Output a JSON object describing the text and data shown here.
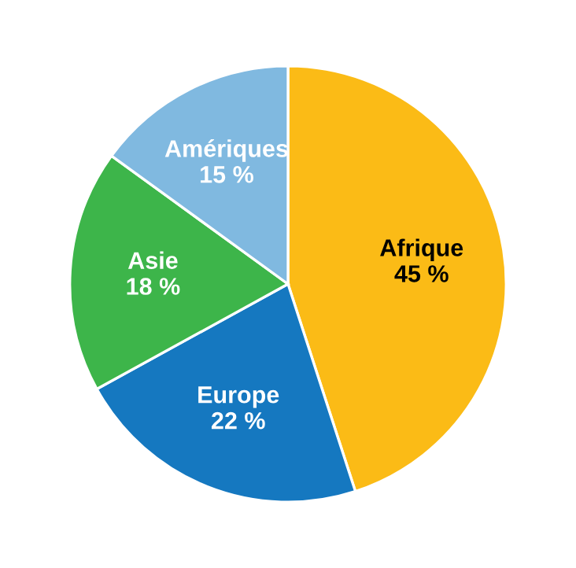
{
  "chart_data": {
    "type": "pie",
    "categories": [
      "Afrique",
      "Europe",
      "Asie",
      "Amériques"
    ],
    "values": [
      45,
      22,
      18,
      15
    ],
    "colors": [
      "#fbbb16",
      "#1578c0",
      "#3db54a",
      "#80b9e0"
    ],
    "value_labels": [
      "45 %",
      "22 %",
      "18 %",
      "15 %"
    ],
    "legend": false
  }
}
